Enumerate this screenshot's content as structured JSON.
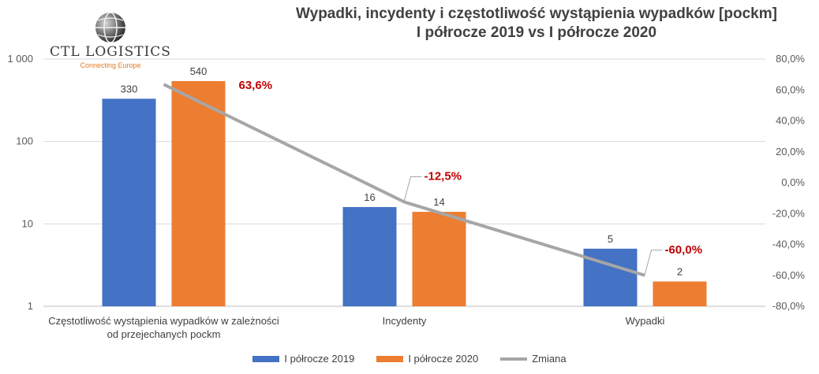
{
  "chart_data": {
    "type": "bar",
    "title_line1": "Wypadki, incydenty i częstotliwość wystąpienia wypadków [pockm]",
    "title_line2": "I półrocze 2019 vs I półrocze 2020",
    "categories": [
      [
        "Częstotliwość wystąpienia wypadków w zależności",
        "od przejechanych pockm"
      ],
      [
        "Incydenty"
      ],
      [
        "Wypadki"
      ]
    ],
    "series": [
      {
        "name": "I półrocze 2019",
        "values": [
          330,
          16,
          5
        ],
        "labels": [
          "330",
          "16",
          "5"
        ],
        "color": "#4472c4"
      },
      {
        "name": "I półrocze 2020",
        "values": [
          540,
          14,
          2
        ],
        "labels": [
          "540",
          "14",
          "2"
        ],
        "color": "#ed7d31"
      }
    ],
    "line_series": {
      "name": "Zmiana",
      "values": [
        63.6,
        -12.5,
        -60.0
      ],
      "labels": [
        "63,6%",
        "-12,5%",
        "-60,0%"
      ],
      "color": "#a6a6a6",
      "label_color": "#c00000"
    },
    "y_left": {
      "scale": "log",
      "ylim": [
        1,
        1000
      ],
      "ticks": [
        1,
        10,
        100,
        1000
      ],
      "tick_labels": [
        "1",
        "10",
        "100",
        "1 000"
      ]
    },
    "y_right": {
      "scale": "linear",
      "ylim": [
        -80,
        80
      ],
      "ticks": [
        -80,
        -60,
        -40,
        -20,
        0,
        20,
        40,
        60,
        80
      ],
      "tick_labels": [
        "-80,0%",
        "-60,0%",
        "-40,0%",
        "-20,0%",
        "0,0%",
        "20,0%",
        "40,0%",
        "60,0%",
        "80,0%"
      ]
    },
    "grid": true,
    "legend_position": "bottom"
  },
  "logo": {
    "name": "CTL LOGISTICS",
    "tagline": "Connecting Europe"
  }
}
